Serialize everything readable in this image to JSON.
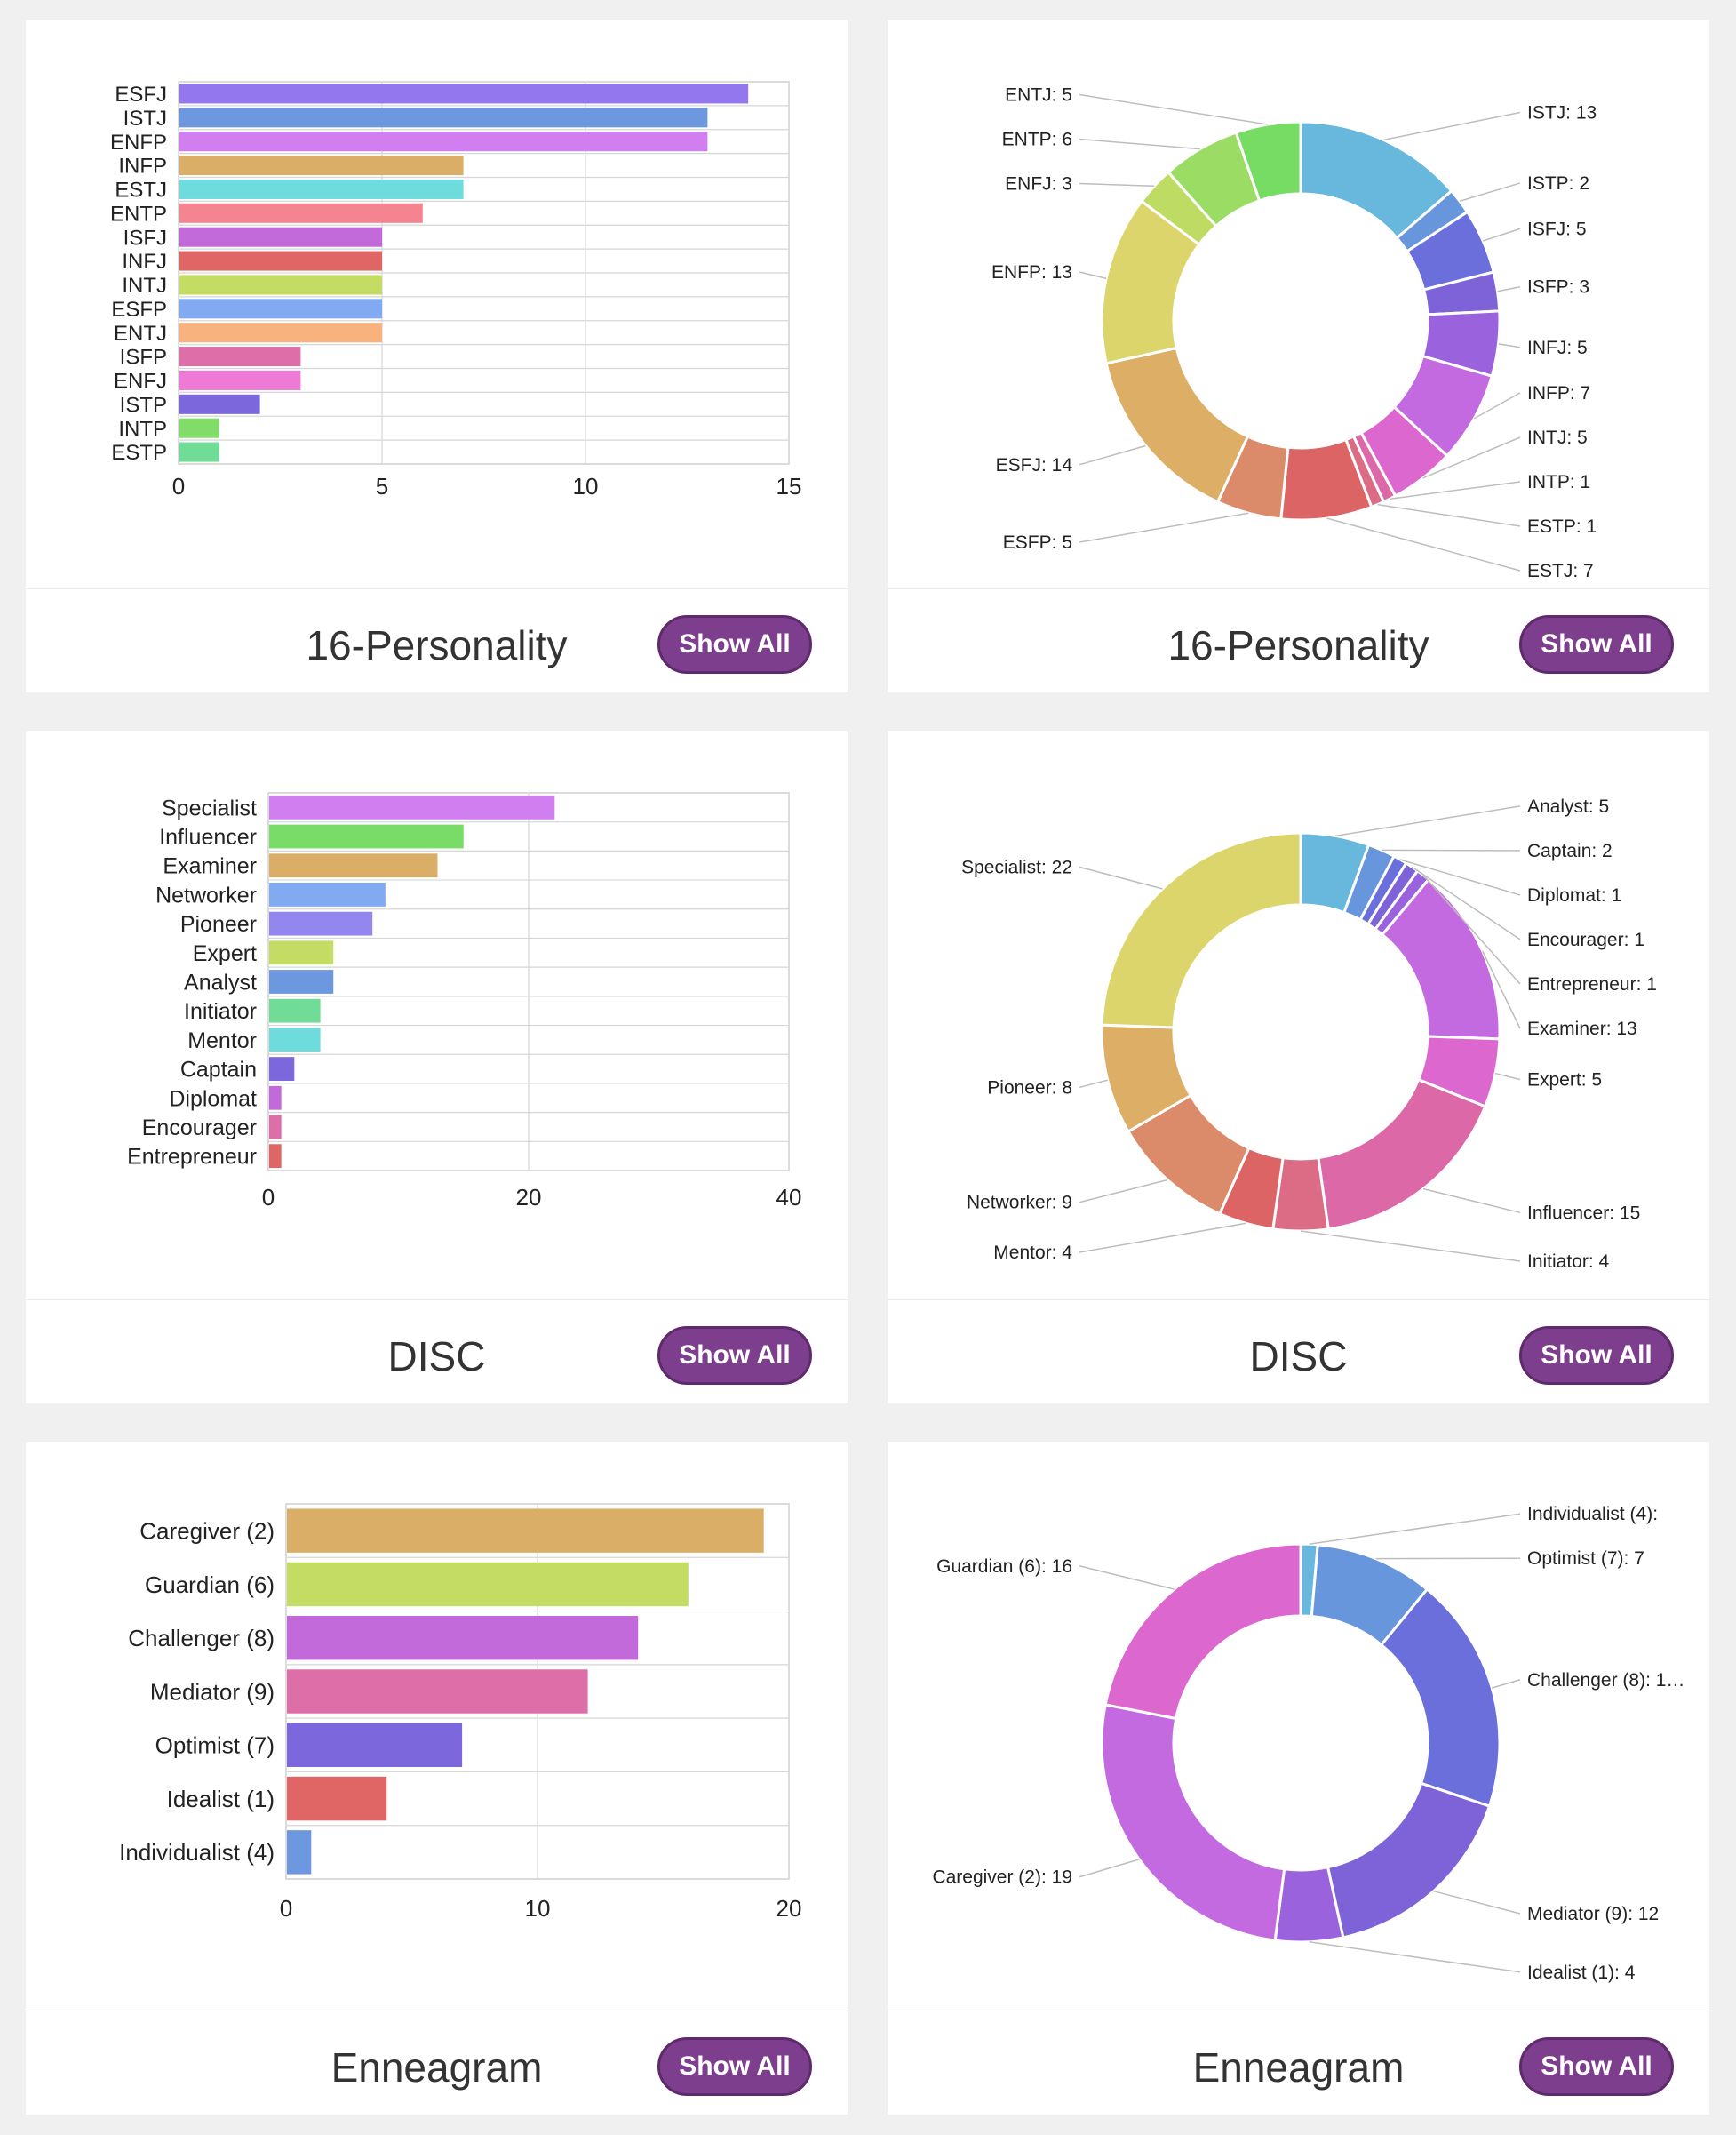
{
  "cards": [
    {
      "footer_title": "16-Personality",
      "button_label": "Show All",
      "chart_data": {
        "type": "bar",
        "orientation": "horizontal",
        "categories": [
          "ESFJ",
          "ISTJ",
          "ENFP",
          "INFP",
          "ESTJ",
          "ENTP",
          "ISFJ",
          "INFJ",
          "INTJ",
          "ESFP",
          "ENTJ",
          "ISFP",
          "ENFJ",
          "ISTP",
          "INTP",
          "ESTP"
        ],
        "values": [
          14,
          13,
          13,
          7,
          7,
          6,
          5,
          5,
          5,
          5,
          5,
          3,
          3,
          2,
          1,
          1
        ],
        "colors": [
          "#9377ee",
          "#6d98e0",
          "#d07ef0",
          "#dbae68",
          "#6edbdc",
          "#f48590",
          "#c26ad9",
          "#e06666",
          "#c5dc64",
          "#82aaf2",
          "#f8b27e",
          "#dd6ea8",
          "#ee7ad6",
          "#7c68dc",
          "#82dc6a",
          "#70dc98"
        ],
        "xlim": [
          0,
          15
        ],
        "xticks": [
          0,
          5,
          10,
          15
        ],
        "grid": true
      }
    },
    {
      "footer_title": "16-Personality",
      "button_label": "Show All",
      "chart_data": {
        "type": "pie",
        "donut": true,
        "labels": [
          "ISTJ",
          "ISTP",
          "ISFJ",
          "ISFP",
          "INFJ",
          "INFP",
          "INTJ",
          "INTP",
          "ESTP",
          "ESTJ",
          "ESFP",
          "ESFJ",
          "ENFP",
          "ENFJ",
          "ENTP",
          "ENTJ"
        ],
        "values": [
          13,
          2,
          5,
          3,
          5,
          7,
          5,
          1,
          1,
          7,
          5,
          14,
          13,
          3,
          6,
          5
        ],
        "label_texts": [
          "ISTJ: 13",
          "ISTP: 2",
          "ISFJ: 5",
          "ISFP: 3",
          "INFJ: 5",
          "INFP: 7",
          "INTJ: 5",
          "INTP: 1",
          "ESTP: 1",
          "ESTJ: 7",
          "ESFP: 5",
          "ESFJ: 14",
          "ENFP: 13",
          "ENFJ: 3",
          "ENTP: 6",
          "ENTJ: 5"
        ],
        "label_sides": [
          "right",
          "right",
          "right",
          "right",
          "right",
          "right",
          "right",
          "right",
          "right",
          "right",
          "left",
          "left",
          "left",
          "left",
          "left",
          "left"
        ],
        "colors": [
          "#68b7dc",
          "#6896dc",
          "#6a6fdc",
          "#7e62d8",
          "#9a62dc",
          "#c46ae0",
          "#dc68cf",
          "#dc68a8",
          "#dc6c85",
          "#dc6464",
          "#dc8b6a",
          "#dcae66",
          "#dcd56c",
          "#bedc64",
          "#9bdc64",
          "#76dc64"
        ]
      }
    },
    {
      "footer_title": "DISC",
      "button_label": "Show All",
      "chart_data": {
        "type": "bar",
        "orientation": "horizontal",
        "categories": [
          "Specialist",
          "Influencer",
          "Examiner",
          "Networker",
          "Pioneer",
          "Expert",
          "Analyst",
          "Initiator",
          "Mentor",
          "Captain",
          "Diplomat",
          "Encourager",
          "Entrepreneur"
        ],
        "values": [
          22,
          15,
          13,
          9,
          8,
          5,
          5,
          4,
          4,
          2,
          1,
          1,
          1
        ],
        "colors": [
          "#d07ef0",
          "#7adc68",
          "#dbae68",
          "#82aaf2",
          "#9386ee",
          "#c5dc64",
          "#6d98e0",
          "#70dc98",
          "#6edbdc",
          "#7c68dc",
          "#c26ad9",
          "#dd6ea8",
          "#e06666"
        ],
        "xlim": [
          0,
          40
        ],
        "xticks": [
          0,
          20,
          40
        ],
        "grid": true
      }
    },
    {
      "footer_title": "DISC",
      "button_label": "Show All",
      "chart_data": {
        "type": "pie",
        "donut": true,
        "labels": [
          "Analyst",
          "Captain",
          "Diplomat",
          "Encourager",
          "Entrepreneur",
          "Examiner",
          "Expert",
          "Influencer",
          "Initiator",
          "Mentor",
          "Networker",
          "Pioneer",
          "Specialist"
        ],
        "values": [
          5,
          2,
          1,
          1,
          1,
          13,
          5,
          15,
          4,
          4,
          9,
          8,
          22
        ],
        "label_texts": [
          "Analyst: 5",
          "Captain: 2",
          "Diplomat: 1",
          "Encourager: 1",
          "Entrepreneur: 1",
          "Examiner: 13",
          "Expert: 5",
          "Influencer: 15",
          "Initiator: 4",
          "Mentor: 4",
          "Networker: 9",
          "Pioneer: 8",
          "Specialist: 22"
        ],
        "label_sides": [
          "right",
          "right",
          "right",
          "right",
          "right",
          "right",
          "right",
          "right",
          "right",
          "left",
          "left",
          "left",
          "left"
        ],
        "colors": [
          "#68b7dc",
          "#6896dc",
          "#6a6fdc",
          "#7e62d8",
          "#9a62dc",
          "#c46ae0",
          "#dc68cf",
          "#dc68a8",
          "#dc6c85",
          "#dc6464",
          "#dc8b6a",
          "#dcae66",
          "#dcd56c"
        ]
      }
    },
    {
      "footer_title": "Enneagram",
      "button_label": "Show All",
      "chart_data": {
        "type": "bar",
        "orientation": "horizontal",
        "categories": [
          "Caregiver (2)",
          "Guardian (6)",
          "Challenger (8)",
          "Mediator (9)",
          "Optimist (7)",
          "Idealist (1)",
          "Individualist (4)"
        ],
        "values": [
          19,
          16,
          14,
          12,
          7,
          4,
          1
        ],
        "colors": [
          "#dbae68",
          "#c5dc64",
          "#c26ad9",
          "#dd6ea8",
          "#7c68dc",
          "#e06666",
          "#6d98e0"
        ],
        "xlim": [
          0,
          20
        ],
        "xticks": [
          0,
          10,
          20
        ],
        "grid": true
      }
    },
    {
      "footer_title": "Enneagram",
      "button_label": "Show All",
      "chart_data": {
        "type": "pie",
        "donut": true,
        "labels": [
          "Individualist (4)",
          "Optimist (7)",
          "Challenger (8)",
          "Mediator (9)",
          "Idealist (1)",
          "Caregiver (2)",
          "Guardian (6)"
        ],
        "values": [
          1,
          7,
          14,
          12,
          4,
          19,
          16
        ],
        "label_texts": [
          "Individualist (4):",
          "Optimist (7): 7",
          "Challenger (8): 1…",
          "Mediator (9): 12",
          "Idealist (1): 4",
          "Caregiver (2): 19",
          "Guardian (6): 16"
        ],
        "label_sides": [
          "right",
          "right",
          "right",
          "right",
          "right",
          "left",
          "left"
        ],
        "colors": [
          "#68b7dc",
          "#6896dc",
          "#6a6fdc",
          "#7e62d8",
          "#9a62dc",
          "#c46ae0",
          "#dc68cf"
        ]
      }
    }
  ]
}
